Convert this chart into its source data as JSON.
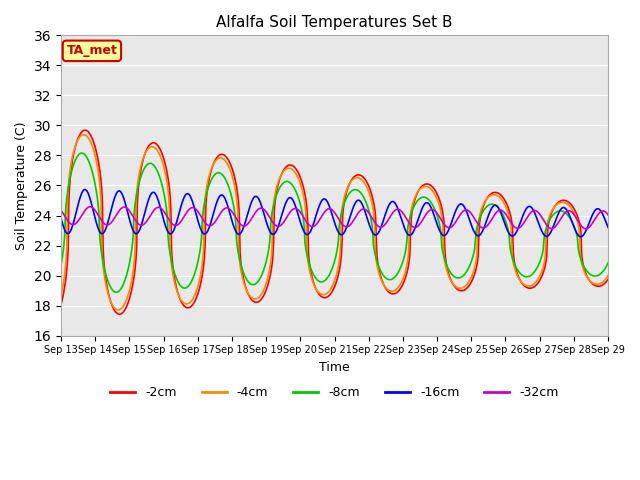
{
  "title": "Alfalfa Soil Temperatures Set B",
  "xlabel": "Time",
  "ylabel": "Soil Temperature (C)",
  "ylim": [
    16,
    36
  ],
  "yticks": [
    16,
    18,
    20,
    22,
    24,
    26,
    28,
    30,
    32,
    34,
    36
  ],
  "colors": {
    "-2cm": "#ff0000",
    "-4cm": "#ff8800",
    "-8cm": "#00cc00",
    "-16cm": "#0000ff",
    "-32cm": "#cc00cc"
  },
  "annotation": "TA_met",
  "annotation_facecolor": "#ffff99",
  "annotation_edgecolor": "#cc0000",
  "annotation_textcolor": "#cc0000",
  "background_color": "#e8e8e8",
  "grid_color": "#ffffff",
  "n_days": 16,
  "start_day": 13,
  "linewidth": 1.2
}
